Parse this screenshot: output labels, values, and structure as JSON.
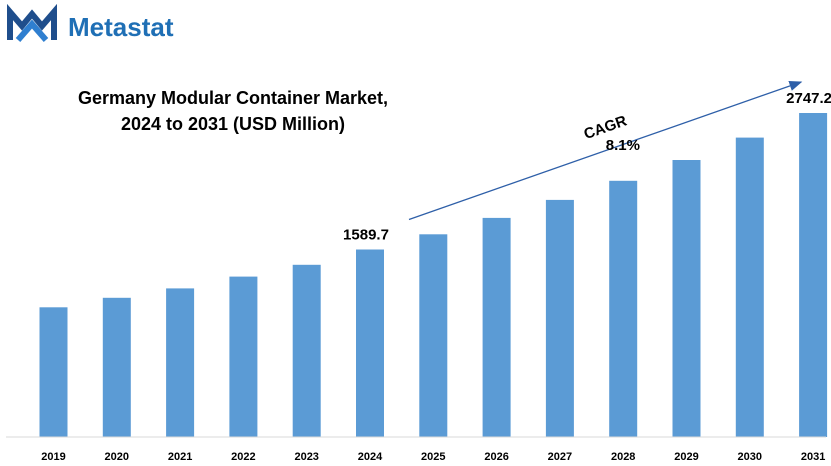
{
  "brand": {
    "name": "Metastat",
    "color": "#1f6fb5",
    "icon": "metastat-m-logo-icon"
  },
  "chart_data": {
    "type": "bar",
    "title_lines": [
      "Germany Modular Container Market,",
      "2024 to 2031 (USD Million)"
    ],
    "categories": [
      "2019",
      "2020",
      "2021",
      "2022",
      "2023",
      "2024",
      "2025",
      "2026",
      "2027",
      "2028",
      "2029",
      "2030",
      "2031"
    ],
    "values": [
      1100,
      1180,
      1260,
      1360,
      1460,
      1589.7,
      1719,
      1858,
      2010,
      2172,
      2349,
      2539,
      2747.2
    ],
    "value_labels": {
      "2024": "1589.7",
      "2031": "2747.2"
    },
    "bar_color": "#5b9bd5",
    "ylim": [
      0,
      2747.2
    ],
    "grid": false,
    "legend": "none",
    "annotation": {
      "label": "CAGR",
      "value": "8.1%",
      "from": "2024",
      "to": "2031",
      "arrow_color": "#2e5fa8"
    }
  }
}
